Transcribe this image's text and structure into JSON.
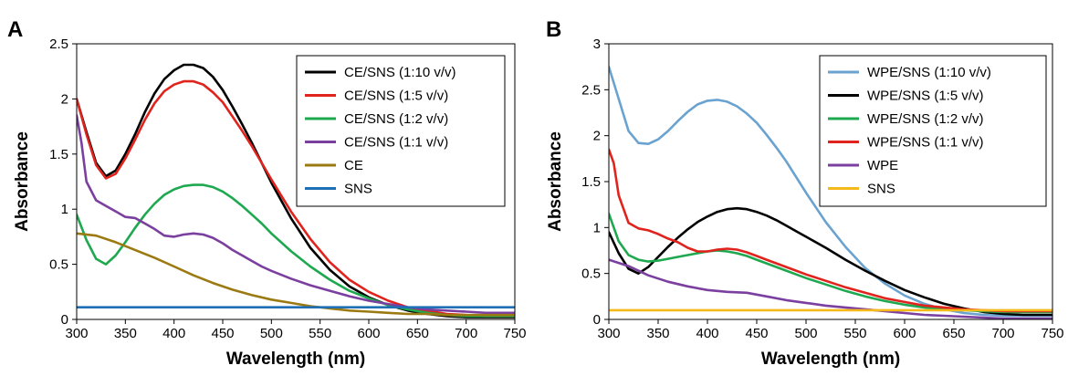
{
  "chart_data": [
    {
      "type": "line",
      "panel_label": "A",
      "xlabel": "Wavelength (nm)",
      "ylabel": "Absorbance",
      "xlim": [
        300,
        750
      ],
      "ylim": [
        0,
        2.5
      ],
      "xticks": [
        "300",
        "350",
        "400",
        "450",
        "500",
        "550",
        "600",
        "650",
        "700",
        "750"
      ],
      "yticks": [
        "0",
        "0.5",
        "1",
        "1.5",
        "2",
        "2.5"
      ],
      "legend_position": "top-right",
      "series": [
        {
          "name": "CE/SNS (1:10 v/v)",
          "color": "#000000",
          "x": [
            300,
            310,
            320,
            330,
            340,
            350,
            360,
            370,
            380,
            390,
            400,
            410,
            420,
            430,
            440,
            450,
            460,
            470,
            480,
            490,
            500,
            520,
            540,
            560,
            580,
            600,
            620,
            640,
            660,
            680,
            700,
            720,
            740,
            750
          ],
          "y": [
            2.0,
            1.7,
            1.42,
            1.3,
            1.35,
            1.5,
            1.68,
            1.88,
            2.05,
            2.18,
            2.26,
            2.31,
            2.31,
            2.28,
            2.2,
            2.08,
            1.93,
            1.77,
            1.6,
            1.42,
            1.24,
            0.92,
            0.65,
            0.45,
            0.3,
            0.2,
            0.13,
            0.08,
            0.05,
            0.03,
            0.02,
            0.02,
            0.02,
            0.02
          ]
        },
        {
          "name": "CE/SNS (1:5 v/v)",
          "color": "#e0231c",
          "x": [
            300,
            310,
            320,
            330,
            340,
            350,
            360,
            370,
            380,
            390,
            400,
            410,
            420,
            430,
            440,
            450,
            460,
            470,
            480,
            490,
            500,
            520,
            540,
            560,
            580,
            600,
            620,
            640,
            660,
            680,
            700,
            720,
            740,
            750
          ],
          "y": [
            2.0,
            1.68,
            1.4,
            1.28,
            1.32,
            1.46,
            1.63,
            1.81,
            1.96,
            2.07,
            2.13,
            2.16,
            2.16,
            2.13,
            2.06,
            1.97,
            1.84,
            1.71,
            1.57,
            1.42,
            1.27,
            0.98,
            0.73,
            0.52,
            0.36,
            0.25,
            0.17,
            0.11,
            0.08,
            0.05,
            0.04,
            0.03,
            0.03,
            0.03
          ]
        },
        {
          "name": "CE/SNS (1:2 v/v)",
          "color": "#1ea84f",
          "x": [
            300,
            310,
            320,
            330,
            340,
            350,
            360,
            370,
            380,
            390,
            400,
            410,
            420,
            430,
            440,
            450,
            460,
            470,
            480,
            490,
            500,
            520,
            540,
            560,
            580,
            600,
            620,
            640,
            660,
            680,
            700,
            720,
            740,
            750
          ],
          "y": [
            0.95,
            0.72,
            0.55,
            0.5,
            0.58,
            0.7,
            0.83,
            0.95,
            1.05,
            1.13,
            1.18,
            1.21,
            1.22,
            1.22,
            1.2,
            1.16,
            1.1,
            1.03,
            0.95,
            0.87,
            0.78,
            0.62,
            0.48,
            0.36,
            0.26,
            0.19,
            0.13,
            0.09,
            0.06,
            0.04,
            0.03,
            0.03,
            0.03,
            0.03
          ]
        },
        {
          "name": "CE/SNS (1:1 v/v)",
          "color": "#7b3fa0",
          "x": [
            300,
            305,
            310,
            320,
            330,
            340,
            350,
            360,
            370,
            380,
            390,
            400,
            410,
            420,
            430,
            440,
            450,
            460,
            470,
            480,
            490,
            500,
            520,
            540,
            560,
            580,
            600,
            620,
            640,
            660,
            680,
            700,
            720,
            750
          ],
          "y": [
            1.85,
            1.6,
            1.25,
            1.08,
            1.03,
            0.98,
            0.93,
            0.92,
            0.87,
            0.82,
            0.76,
            0.75,
            0.77,
            0.78,
            0.77,
            0.74,
            0.69,
            0.63,
            0.58,
            0.53,
            0.48,
            0.44,
            0.37,
            0.31,
            0.26,
            0.21,
            0.17,
            0.14,
            0.11,
            0.09,
            0.08,
            0.07,
            0.06,
            0.06
          ]
        },
        {
          "name": "CE",
          "color": "#9c7a12",
          "x": [
            300,
            320,
            340,
            360,
            380,
            400,
            420,
            440,
            460,
            480,
            500,
            520,
            540,
            560,
            580,
            600,
            620,
            640,
            660,
            680,
            700,
            720,
            750
          ],
          "y": [
            0.78,
            0.76,
            0.7,
            0.63,
            0.56,
            0.48,
            0.4,
            0.33,
            0.27,
            0.22,
            0.18,
            0.15,
            0.12,
            0.1,
            0.08,
            0.07,
            0.06,
            0.05,
            0.05,
            0.04,
            0.04,
            0.04,
            0.04
          ]
        },
        {
          "name": "SNS",
          "color": "#1f6fb4",
          "x": [
            300,
            750
          ],
          "y": [
            0.11,
            0.11
          ]
        }
      ]
    },
    {
      "type": "line",
      "panel_label": "B",
      "xlabel": "Wavelength (nm)",
      "ylabel": "Absorbance",
      "xlim": [
        300,
        750
      ],
      "ylim": [
        0,
        3
      ],
      "xticks": [
        "300",
        "350",
        "400",
        "450",
        "500",
        "550",
        "600",
        "650",
        "700",
        "750"
      ],
      "yticks": [
        "0",
        "0.5",
        "1",
        "1.5",
        "2",
        "2.5",
        "3"
      ],
      "legend_position": "top-right",
      "series": [
        {
          "name": "WPE/SNS (1:10 v/v)",
          "color": "#6aa2d0",
          "x": [
            300,
            310,
            320,
            330,
            340,
            350,
            360,
            370,
            380,
            390,
            400,
            410,
            420,
            430,
            440,
            450,
            460,
            470,
            480,
            490,
            500,
            520,
            540,
            560,
            580,
            600,
            620,
            640,
            660,
            680,
            700,
            720,
            740,
            750
          ],
          "y": [
            2.75,
            2.4,
            2.05,
            1.92,
            1.91,
            1.96,
            2.05,
            2.16,
            2.26,
            2.34,
            2.38,
            2.39,
            2.37,
            2.32,
            2.24,
            2.14,
            2.01,
            1.87,
            1.72,
            1.55,
            1.38,
            1.06,
            0.79,
            0.56,
            0.39,
            0.26,
            0.17,
            0.11,
            0.07,
            0.05,
            0.04,
            0.04,
            0.04,
            0.04
          ]
        },
        {
          "name": "WPE/SNS (1:5 v/v)",
          "color": "#000000",
          "x": [
            300,
            310,
            320,
            330,
            340,
            350,
            360,
            370,
            380,
            390,
            400,
            410,
            420,
            430,
            440,
            450,
            460,
            470,
            480,
            490,
            500,
            520,
            540,
            560,
            580,
            600,
            620,
            640,
            660,
            680,
            700,
            720,
            740,
            750
          ],
          "y": [
            0.95,
            0.72,
            0.55,
            0.5,
            0.57,
            0.68,
            0.79,
            0.89,
            0.98,
            1.06,
            1.12,
            1.17,
            1.2,
            1.21,
            1.2,
            1.17,
            1.13,
            1.08,
            1.02,
            0.96,
            0.9,
            0.78,
            0.65,
            0.53,
            0.42,
            0.32,
            0.24,
            0.17,
            0.12,
            0.08,
            0.06,
            0.05,
            0.05,
            0.05
          ]
        },
        {
          "name": "WPE/SNS (1:2 v/v)",
          "color": "#1ea84f",
          "x": [
            300,
            310,
            320,
            330,
            340,
            350,
            360,
            370,
            380,
            390,
            400,
            410,
            420,
            430,
            440,
            450,
            460,
            470,
            480,
            490,
            500,
            520,
            540,
            560,
            580,
            600,
            620,
            640,
            660,
            680,
            700,
            720,
            740,
            750
          ],
          "y": [
            1.15,
            0.85,
            0.7,
            0.65,
            0.63,
            0.64,
            0.66,
            0.68,
            0.7,
            0.72,
            0.74,
            0.75,
            0.74,
            0.72,
            0.69,
            0.65,
            0.61,
            0.57,
            0.53,
            0.49,
            0.45,
            0.38,
            0.31,
            0.25,
            0.2,
            0.16,
            0.13,
            0.11,
            0.1,
            0.09,
            0.08,
            0.08,
            0.08,
            0.08
          ]
        },
        {
          "name": "WPE/SNS (1:1 v/v)",
          "color": "#e0231c",
          "x": [
            300,
            305,
            310,
            320,
            330,
            340,
            350,
            360,
            370,
            380,
            390,
            400,
            410,
            420,
            430,
            440,
            450,
            460,
            470,
            480,
            490,
            500,
            520,
            540,
            560,
            580,
            600,
            620,
            640,
            660,
            680,
            700,
            720,
            750
          ],
          "y": [
            1.85,
            1.7,
            1.35,
            1.05,
            0.99,
            0.97,
            0.93,
            0.88,
            0.84,
            0.78,
            0.74,
            0.74,
            0.76,
            0.77,
            0.76,
            0.73,
            0.69,
            0.65,
            0.61,
            0.57,
            0.53,
            0.49,
            0.42,
            0.35,
            0.29,
            0.23,
            0.19,
            0.15,
            0.13,
            0.11,
            0.1,
            0.09,
            0.09,
            0.09
          ]
        },
        {
          "name": "WPE",
          "color": "#7b3fa0",
          "x": [
            300,
            320,
            340,
            360,
            380,
            400,
            420,
            440,
            460,
            480,
            500,
            520,
            540,
            560,
            580,
            600,
            620,
            640,
            660,
            680,
            700,
            720,
            750
          ],
          "y": [
            0.65,
            0.58,
            0.48,
            0.41,
            0.36,
            0.32,
            0.3,
            0.29,
            0.25,
            0.21,
            0.18,
            0.15,
            0.13,
            0.11,
            0.09,
            0.07,
            0.05,
            0.04,
            0.03,
            0.02,
            0.01,
            0.01,
            0.01
          ]
        },
        {
          "name": "SNS",
          "color": "#f5b919",
          "x": [
            300,
            750
          ],
          "y": [
            0.1,
            0.1
          ]
        }
      ]
    }
  ]
}
